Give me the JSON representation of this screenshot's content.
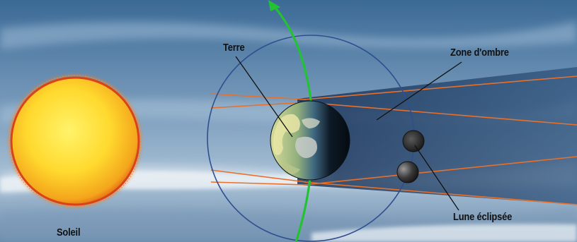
{
  "labels": {
    "earth": "Terre",
    "shadow_zone": "Zone d'ombre",
    "sun": "Soleil",
    "eclipsed_moon": "Lune éclipsée"
  },
  "colors": {
    "sky_top": "#3f6f9a",
    "sky_bottom": "#9fbad0",
    "sun_core": "#ffe94a",
    "sun_edge": "#f3a21a",
    "sun_corona": "#e4561c",
    "orbit": "#2e4f8f",
    "rotation_arrow": "#22c233",
    "shadow_border": "#e8702a",
    "shadow_fill": "#1f3c63",
    "moon": "#2a2a2a",
    "earth_ocean": "#3d6b8a",
    "earth_land": "#c9cf8a",
    "pointer_line": "#111111"
  },
  "icons": {
    "sun": "sun-icon",
    "earth": "earth-globe-icon",
    "moon": "moon-icon",
    "arrow": "rotation-arrow-icon"
  }
}
